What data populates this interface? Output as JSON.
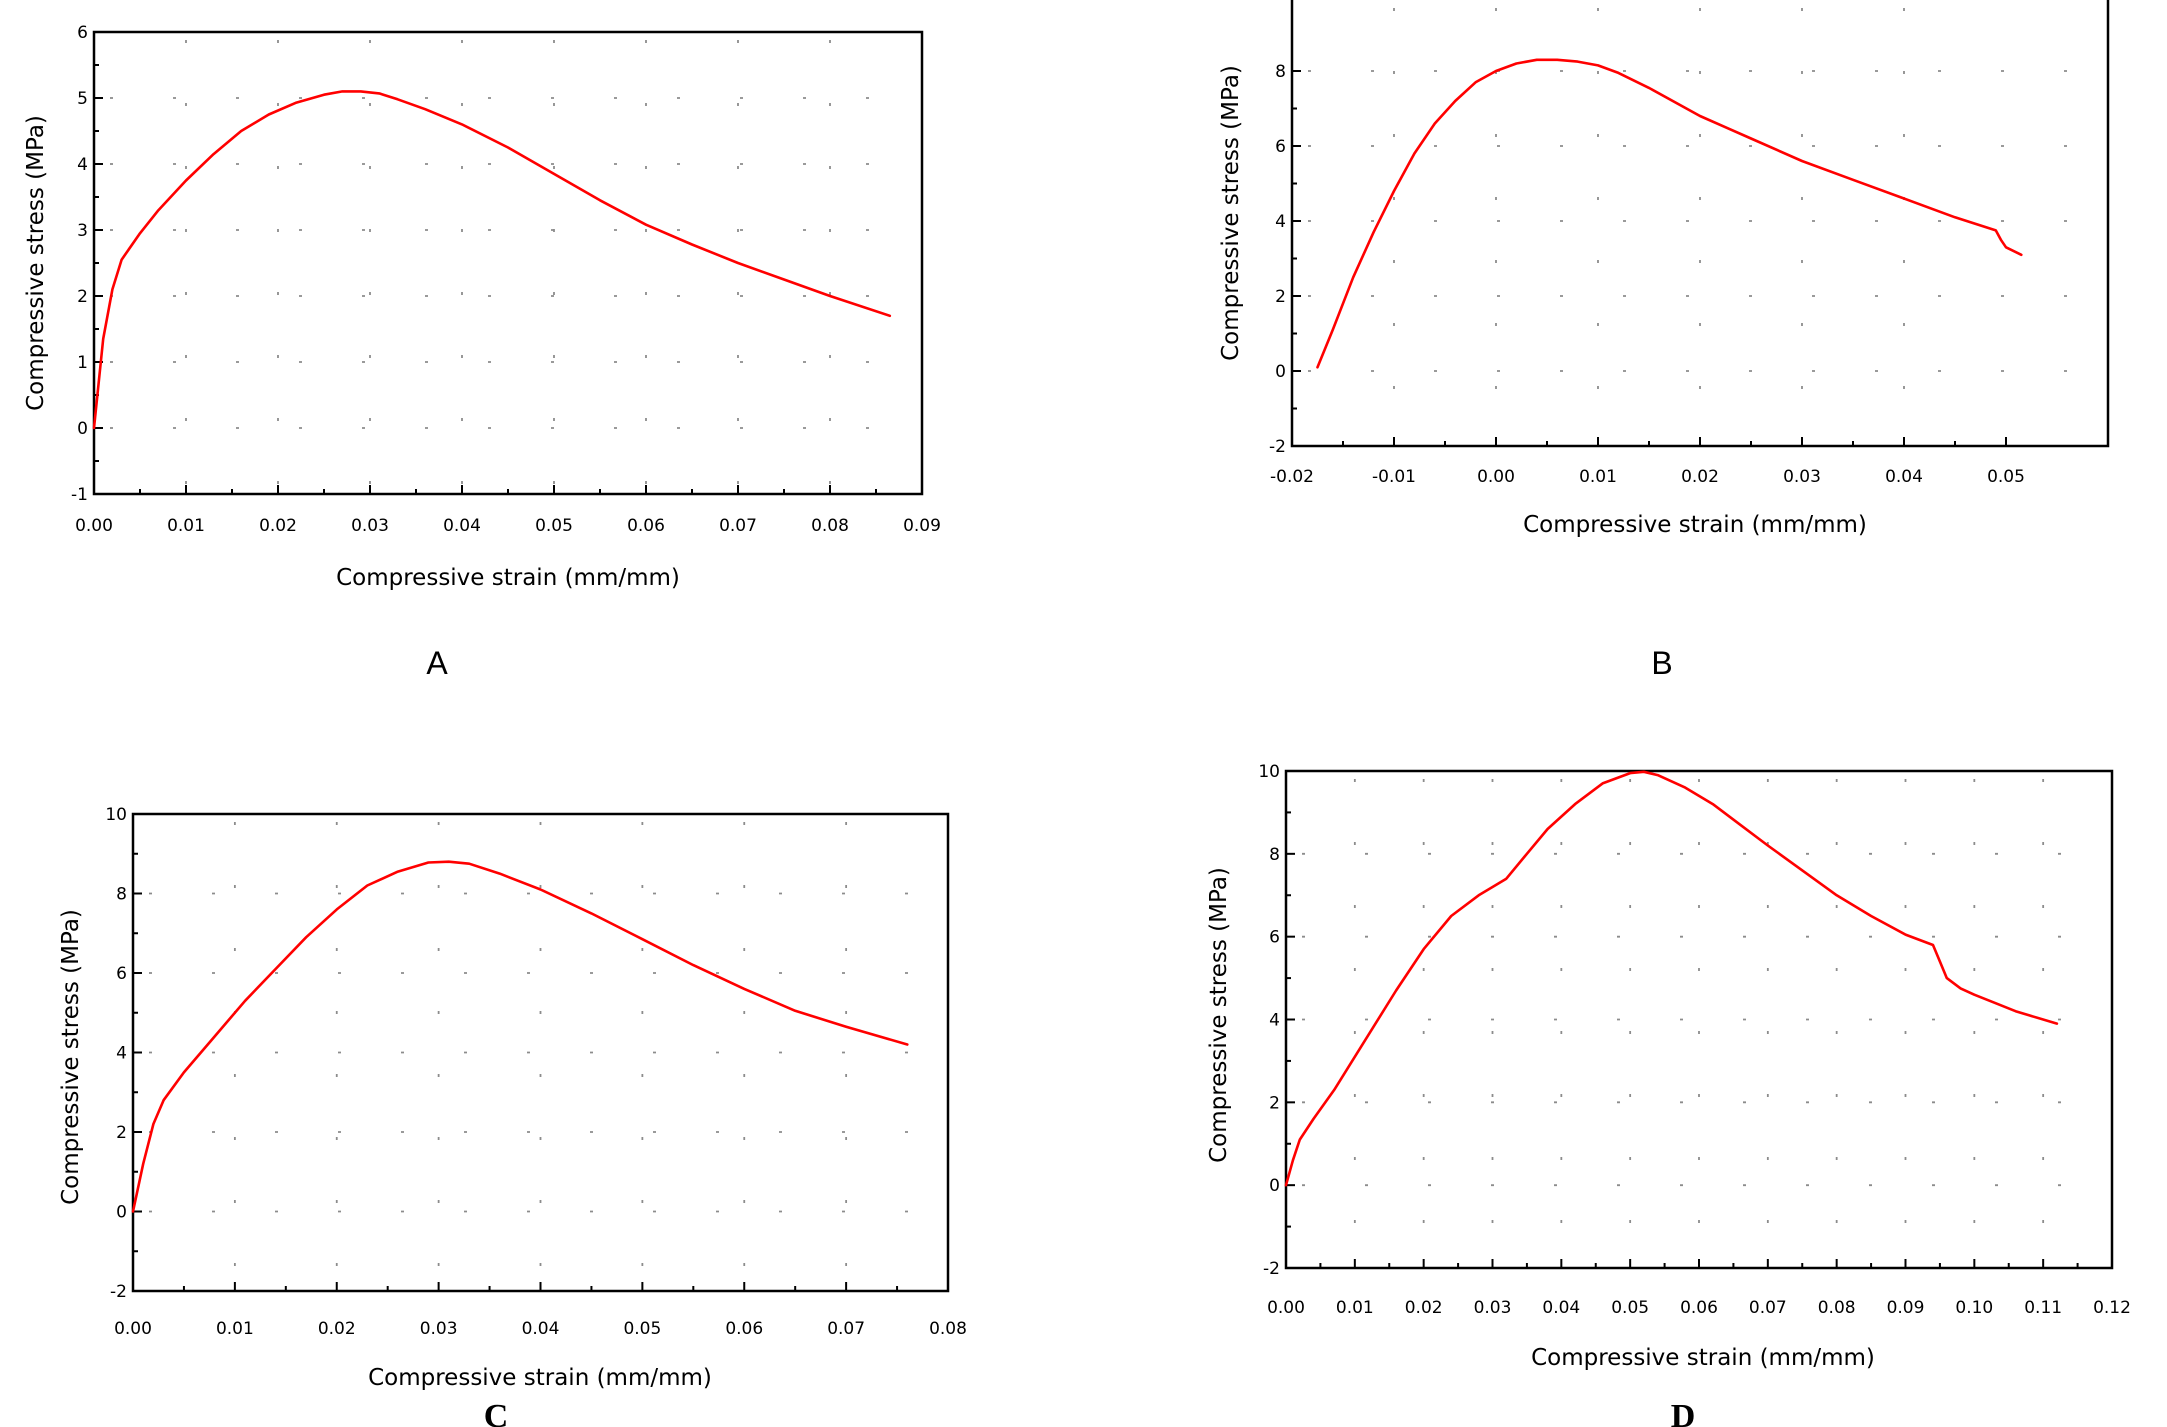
{
  "chart_data": [
    {
      "panel": "A",
      "type": "line",
      "xlabel": "Compressive strain (mm/mm)",
      "ylabel": "Compressive stress (MPa)",
      "xlim": [
        0,
        0.09
      ],
      "ylim": [
        -1,
        6
      ],
      "xticks": [
        0,
        0.01,
        0.02,
        0.03,
        0.04,
        0.05,
        0.06,
        0.07,
        0.08,
        0.09
      ],
      "xtick_labels": [
        "0.00",
        "0.01",
        "0.02",
        "0.03",
        "0.04",
        "0.05",
        "0.06",
        "0.07",
        "0.08",
        "0.09"
      ],
      "yticks": [
        -1,
        0,
        1,
        2,
        3,
        4,
        5,
        6
      ],
      "ytick_labels": [
        "-1",
        "0",
        "1",
        "2",
        "3",
        "4",
        "5",
        "6"
      ],
      "color": "#ff0000",
      "series": [
        {
          "name": "A",
          "x": [
            0,
            0.001,
            0.002,
            0.003,
            0.005,
            0.007,
            0.01,
            0.013,
            0.016,
            0.019,
            0.022,
            0.025,
            0.027,
            0.029,
            0.031,
            0.033,
            0.036,
            0.04,
            0.045,
            0.05,
            0.055,
            0.06,
            0.065,
            0.07,
            0.075,
            0.08,
            0.0865
          ],
          "y": [
            0,
            1.35,
            2.1,
            2.55,
            2.95,
            3.3,
            3.75,
            4.15,
            4.5,
            4.75,
            4.93,
            5.05,
            5.1,
            5.1,
            5.07,
            4.98,
            4.83,
            4.6,
            4.25,
            3.85,
            3.45,
            3.08,
            2.78,
            2.5,
            2.25,
            2.0,
            1.7
          ]
        }
      ]
    },
    {
      "panel": "B",
      "type": "line",
      "xlabel": "Compressive strain (mm/mm)",
      "ylabel": "Compressive stress (MPa)",
      "xlim": [
        -0.02,
        0.06
      ],
      "ylim": [
        -2,
        10
      ],
      "xticks": [
        -0.02,
        -0.01,
        0,
        0.01,
        0.02,
        0.03,
        0.04,
        0.05
      ],
      "xtick_labels": [
        "-0.02",
        "-0.01",
        "0.00",
        "0.01",
        "0.02",
        "0.03",
        "0.04",
        "0.05"
      ],
      "yticks": [
        -2,
        0,
        2,
        4,
        6,
        8
      ],
      "ytick_labels": [
        "-2",
        "0",
        "2",
        "4",
        "6",
        "8"
      ],
      "color": "#ff0000",
      "series": [
        {
          "name": "B",
          "x": [
            -0.0175,
            -0.016,
            -0.014,
            -0.012,
            -0.01,
            -0.008,
            -0.006,
            -0.004,
            -0.002,
            0,
            0.002,
            0.004,
            0.006,
            0.008,
            0.01,
            0.012,
            0.015,
            0.02,
            0.025,
            0.03,
            0.035,
            0.04,
            0.045,
            0.049,
            0.0495,
            0.05,
            0.0515
          ],
          "y": [
            0.1,
            1.1,
            2.5,
            3.7,
            4.8,
            5.8,
            6.6,
            7.2,
            7.7,
            8.0,
            8.2,
            8.3,
            8.3,
            8.25,
            8.15,
            7.95,
            7.55,
            6.8,
            6.2,
            5.6,
            5.1,
            4.6,
            4.1,
            3.75,
            3.5,
            3.3,
            3.1
          ]
        }
      ]
    },
    {
      "panel": "C",
      "type": "line",
      "xlabel": "Compressive strain (mm/mm)",
      "ylabel": "Compressive stress (MPa)",
      "xlim": [
        0,
        0.08
      ],
      "ylim": [
        -2,
        10
      ],
      "xticks": [
        0,
        0.01,
        0.02,
        0.03,
        0.04,
        0.05,
        0.06,
        0.07,
        0.08
      ],
      "xtick_labels": [
        "0.00",
        "0.01",
        "0.02",
        "0.03",
        "0.04",
        "0.05",
        "0.06",
        "0.07",
        "0.08"
      ],
      "yticks": [
        -2,
        0,
        2,
        4,
        6,
        8,
        10
      ],
      "ytick_labels": [
        "-2",
        "0",
        "2",
        "4",
        "6",
        "8",
        "10"
      ],
      "color": "#ff0000",
      "series": [
        {
          "name": "C",
          "x": [
            0,
            0.001,
            0.002,
            0.003,
            0.005,
            0.008,
            0.011,
            0.014,
            0.017,
            0.02,
            0.023,
            0.026,
            0.029,
            0.031,
            0.033,
            0.036,
            0.04,
            0.045,
            0.05,
            0.055,
            0.06,
            0.065,
            0.07,
            0.076
          ],
          "y": [
            0,
            1.2,
            2.2,
            2.8,
            3.5,
            4.4,
            5.3,
            6.1,
            6.9,
            7.6,
            8.2,
            8.55,
            8.78,
            8.8,
            8.75,
            8.5,
            8.1,
            7.5,
            6.85,
            6.2,
            5.6,
            5.05,
            4.65,
            4.2
          ]
        }
      ]
    },
    {
      "panel": "D",
      "type": "line",
      "xlabel": "Compressive strain (mm/mm)",
      "ylabel": "Compressive stress (MPa)",
      "xlim": [
        0,
        0.12
      ],
      "ylim": [
        -2,
        10
      ],
      "xticks": [
        0,
        0.01,
        0.02,
        0.03,
        0.04,
        0.05,
        0.06,
        0.07,
        0.08,
        0.09,
        0.1,
        0.11,
        0.12
      ],
      "xtick_labels": [
        "0.00",
        "0.01",
        "0.02",
        "0.03",
        "0.04",
        "0.05",
        "0.06",
        "0.07",
        "0.08",
        "0.09",
        "0.10",
        "0.11",
        "0.12"
      ],
      "yticks": [
        -2,
        0,
        2,
        4,
        6,
        8,
        10
      ],
      "ytick_labels": [
        "-2",
        "0",
        "2",
        "4",
        "6",
        "8",
        "10"
      ],
      "color": "#ff0000",
      "series": [
        {
          "name": "D",
          "x": [
            0,
            0.001,
            0.002,
            0.004,
            0.007,
            0.01,
            0.013,
            0.016,
            0.02,
            0.024,
            0.028,
            0.032,
            0.035,
            0.038,
            0.042,
            0.046,
            0.05,
            0.052,
            0.054,
            0.058,
            0.062,
            0.066,
            0.07,
            0.075,
            0.08,
            0.085,
            0.09,
            0.094,
            0.095,
            0.096,
            0.098,
            0.1,
            0.103,
            0.106,
            0.108,
            0.112
          ],
          "y": [
            0,
            0.6,
            1.1,
            1.6,
            2.3,
            3.1,
            3.9,
            4.7,
            5.7,
            6.5,
            7.0,
            7.4,
            8.0,
            8.6,
            9.2,
            9.7,
            9.95,
            9.98,
            9.9,
            9.6,
            9.2,
            8.7,
            8.2,
            7.6,
            7.0,
            6.5,
            6.05,
            5.8,
            5.4,
            5.0,
            4.75,
            4.6,
            4.4,
            4.2,
            4.1,
            3.9
          ]
        }
      ]
    }
  ],
  "panel_labels": [
    "A",
    "B",
    "C",
    "D"
  ]
}
